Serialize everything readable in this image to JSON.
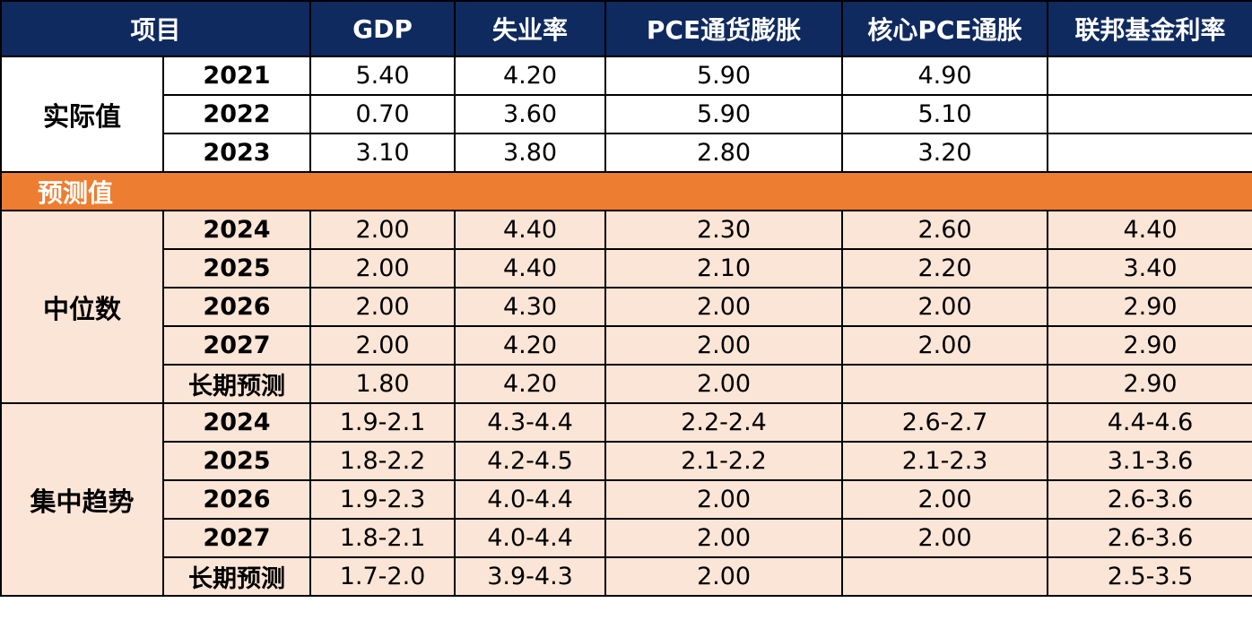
{
  "header": [
    "项目",
    "GDP",
    "失业率",
    "PCE通货膨胀",
    "核心PCE通胀",
    "联邦基金利率"
  ],
  "actual": {
    "label": "实际值",
    "rows": [
      {
        "year": "2021",
        "values": [
          "5.40",
          "4.20",
          "5.90",
          "4.90",
          ""
        ]
      },
      {
        "year": "2022",
        "values": [
          "0.70",
          "3.60",
          "5.90",
          "5.10",
          ""
        ]
      },
      {
        "year": "2023",
        "values": [
          "3.10",
          "3.80",
          "2.80",
          "3.20",
          ""
        ]
      }
    ]
  },
  "forecast_label": "预测值",
  "median": {
    "label": "中位数",
    "rows": [
      {
        "year": "2024",
        "values": [
          "2.00",
          "4.40",
          "2.30",
          "2.60",
          "4.40"
        ]
      },
      {
        "year": "2025",
        "values": [
          "2.00",
          "4.40",
          "2.10",
          "2.20",
          "3.40"
        ]
      },
      {
        "year": "2026",
        "values": [
          "2.00",
          "4.30",
          "2.00",
          "2.00",
          "2.90"
        ]
      },
      {
        "year": "2027",
        "values": [
          "2.00",
          "4.20",
          "2.00",
          "2.00",
          "2.90"
        ]
      },
      {
        "year": "长期预测",
        "values": [
          "1.80",
          "4.20",
          "2.00",
          "",
          "2.90"
        ]
      }
    ]
  },
  "central": {
    "label": "集中趋势",
    "rows": [
      {
        "year": "2024",
        "values": [
          "1.9-2.1",
          "4.3-4.4",
          "2.2-2.4",
          "2.6-2.7",
          "4.4-4.6"
        ]
      },
      {
        "year": "2025",
        "values": [
          "1.8-2.2",
          "4.2-4.5",
          "2.1-2.2",
          "2.1-2.3",
          "3.1-3.6"
        ]
      },
      {
        "year": "2026",
        "values": [
          "1.9-2.3",
          "4.0-4.4",
          "2.00",
          "2.00",
          "2.6-3.6"
        ]
      },
      {
        "year": "2027",
        "values": [
          "1.8-2.1",
          "4.0-4.4",
          "2.00",
          "2.00",
          "2.6-3.6"
        ]
      },
      {
        "year": "长期预测",
        "values": [
          "1.7-2.0",
          "3.9-4.3",
          "2.00",
          "",
          "2.5-3.5"
        ]
      }
    ]
  }
}
